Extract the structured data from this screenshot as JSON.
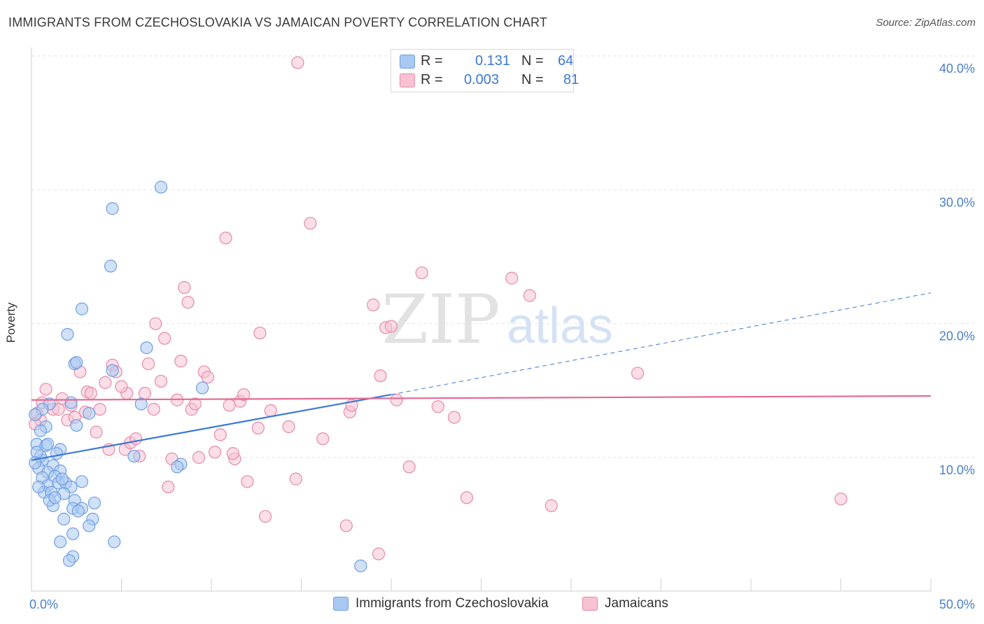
{
  "title": "IMMIGRANTS FROM CZECHOSLOVAKIA VS JAMAICAN POVERTY CORRELATION CHART",
  "source": "Source: ZipAtlas.com",
  "watermark": {
    "zip": "ZIP",
    "atlas": "atlas"
  },
  "legend": {
    "r_label": "R =",
    "n_label": "N =",
    "rows": [
      {
        "r": "0.131",
        "n": "64",
        "color": "#a9c9f2",
        "border": "#6f9fe0"
      },
      {
        "r": "0.003",
        "n": "81",
        "color": "#f7c3d3",
        "border": "#e48aa8"
      }
    ]
  },
  "chart_data": {
    "type": "scatter",
    "title": "IMMIGRANTS FROM CZECHOSLOVAKIA VS JAMAICAN POVERTY CORRELATION CHART",
    "xlabel": "",
    "ylabel": "Poverty",
    "xlim": [
      0,
      50
    ],
    "ylim": [
      0,
      40
    ],
    "x_tick_labels": [
      "0.0%",
      "50.0%"
    ],
    "y_ticks": [
      10,
      20,
      30,
      40
    ],
    "y_tick_labels": [
      "10.0%",
      "20.0%",
      "30.0%",
      "40.0%"
    ],
    "grid": "horizontal dashed",
    "legend_position": "top-center and bottom",
    "series": [
      {
        "name": "Immigrants from Czechoslovakia",
        "color": "#6f9fe0",
        "fill": "#a9c9f2",
        "trend": {
          "x0": 0,
          "y0": 9.8,
          "x1": 20,
          "y1": 14.7,
          "dashed_to": {
            "x": 50,
            "y": 22.3
          }
        },
        "points": [
          [
            0.3,
            11.0
          ],
          [
            0.6,
            9.8
          ],
          [
            0.5,
            10.1
          ],
          [
            0.8,
            12.3
          ],
          [
            1.0,
            14.0
          ],
          [
            0.6,
            13.6
          ],
          [
            0.2,
            13.2
          ],
          [
            0.8,
            10.9
          ],
          [
            1.6,
            10.6
          ],
          [
            1.4,
            10.3
          ],
          [
            0.4,
            9.2
          ],
          [
            1.2,
            9.4
          ],
          [
            0.9,
            8.9
          ],
          [
            1.6,
            9.0
          ],
          [
            0.6,
            8.5
          ],
          [
            1.3,
            8.6
          ],
          [
            0.9,
            7.9
          ],
          [
            0.7,
            7.4
          ],
          [
            1.5,
            8.1
          ],
          [
            1.9,
            8.1
          ],
          [
            1.1,
            7.4
          ],
          [
            2.2,
            7.8
          ],
          [
            2.8,
            8.2
          ],
          [
            1.8,
            7.3
          ],
          [
            2.4,
            6.8
          ],
          [
            1.2,
            6.4
          ],
          [
            2.3,
            6.2
          ],
          [
            2.8,
            6.2
          ],
          [
            3.5,
            6.6
          ],
          [
            1.8,
            5.4
          ],
          [
            3.4,
            5.4
          ],
          [
            3.2,
            4.9
          ],
          [
            2.3,
            4.3
          ],
          [
            1.6,
            3.7
          ],
          [
            4.6,
            3.7
          ],
          [
            2.3,
            2.6
          ],
          [
            2.1,
            2.3
          ],
          [
            2.2,
            14.1
          ],
          [
            2.4,
            17.0
          ],
          [
            2.5,
            17.1
          ],
          [
            2.0,
            19.2
          ],
          [
            2.8,
            21.1
          ],
          [
            4.4,
            24.3
          ],
          [
            4.5,
            28.6
          ],
          [
            7.2,
            30.2
          ],
          [
            4.5,
            16.5
          ],
          [
            6.4,
            18.2
          ],
          [
            6.1,
            14.0
          ],
          [
            3.2,
            13.3
          ],
          [
            5.7,
            10.1
          ],
          [
            8.3,
            9.5
          ],
          [
            8.1,
            9.3
          ],
          [
            9.5,
            15.2
          ],
          [
            18.3,
            1.9
          ],
          [
            2.5,
            12.4
          ],
          [
            0.3,
            10.4
          ],
          [
            0.4,
            7.8
          ],
          [
            1.0,
            6.8
          ],
          [
            1.7,
            8.4
          ],
          [
            0.9,
            11.0
          ],
          [
            0.2,
            9.6
          ],
          [
            0.5,
            12.0
          ],
          [
            1.3,
            7.0
          ],
          [
            2.6,
            6.0
          ]
        ]
      },
      {
        "name": "Jamaicans",
        "color": "#e48aa8",
        "fill": "#f7c3d3",
        "trend": {
          "x0": 0,
          "y0": 14.3,
          "x1": 50,
          "y1": 14.6
        },
        "points": [
          [
            0.3,
            13.3
          ],
          [
            0.5,
            12.8
          ],
          [
            0.8,
            15.1
          ],
          [
            1.2,
            13.6
          ],
          [
            1.5,
            13.6
          ],
          [
            1.7,
            14.4
          ],
          [
            2.0,
            12.8
          ],
          [
            2.4,
            13.0
          ],
          [
            2.7,
            16.4
          ],
          [
            3.1,
            14.9
          ],
          [
            3.3,
            14.8
          ],
          [
            3.6,
            11.9
          ],
          [
            3.8,
            13.6
          ],
          [
            4.1,
            15.6
          ],
          [
            4.3,
            10.6
          ],
          [
            4.5,
            16.9
          ],
          [
            4.7,
            16.4
          ],
          [
            5.2,
            10.6
          ],
          [
            5.3,
            14.8
          ],
          [
            5.5,
            11.1
          ],
          [
            5.8,
            11.4
          ],
          [
            6.0,
            10.1
          ],
          [
            6.3,
            14.8
          ],
          [
            6.5,
            17.0
          ],
          [
            6.8,
            13.6
          ],
          [
            6.9,
            20.0
          ],
          [
            7.2,
            15.7
          ],
          [
            7.4,
            18.9
          ],
          [
            7.6,
            7.8
          ],
          [
            7.8,
            9.9
          ],
          [
            8.1,
            14.3
          ],
          [
            8.3,
            17.2
          ],
          [
            8.5,
            22.7
          ],
          [
            8.7,
            21.6
          ],
          [
            8.9,
            13.6
          ],
          [
            9.3,
            10.0
          ],
          [
            9.6,
            16.4
          ],
          [
            9.8,
            16.0
          ],
          [
            10.2,
            10.4
          ],
          [
            10.5,
            11.7
          ],
          [
            10.8,
            26.4
          ],
          [
            11.0,
            13.9
          ],
          [
            11.3,
            9.9
          ],
          [
            11.6,
            14.2
          ],
          [
            11.8,
            14.7
          ],
          [
            12.0,
            8.2
          ],
          [
            12.6,
            12.2
          ],
          [
            13.0,
            5.6
          ],
          [
            12.7,
            19.3
          ],
          [
            13.3,
            13.5
          ],
          [
            14.3,
            12.3
          ],
          [
            14.7,
            8.4
          ],
          [
            15.5,
            27.5
          ],
          [
            16.2,
            11.4
          ],
          [
            17.5,
            4.9
          ],
          [
            17.7,
            13.4
          ],
          [
            17.8,
            13.9
          ],
          [
            19.3,
            2.8
          ],
          [
            19.0,
            21.4
          ],
          [
            19.4,
            16.1
          ],
          [
            19.7,
            19.7
          ],
          [
            20.0,
            19.8
          ],
          [
            20.3,
            14.3
          ],
          [
            21.0,
            9.3
          ],
          [
            21.7,
            23.8
          ],
          [
            22.6,
            13.8
          ],
          [
            23.5,
            13.0
          ],
          [
            24.2,
            7.0
          ],
          [
            26.7,
            23.4
          ],
          [
            27.7,
            22.1
          ],
          [
            28.9,
            6.4
          ],
          [
            33.7,
            16.3
          ],
          [
            45.0,
            6.9
          ],
          [
            14.8,
            39.5
          ],
          [
            0.2,
            12.5
          ],
          [
            0.6,
            14.1
          ],
          [
            2.2,
            13.9
          ],
          [
            3.0,
            13.4
          ],
          [
            5.0,
            15.3
          ],
          [
            9.1,
            14.0
          ],
          [
            11.2,
            10.3
          ]
        ]
      }
    ]
  }
}
